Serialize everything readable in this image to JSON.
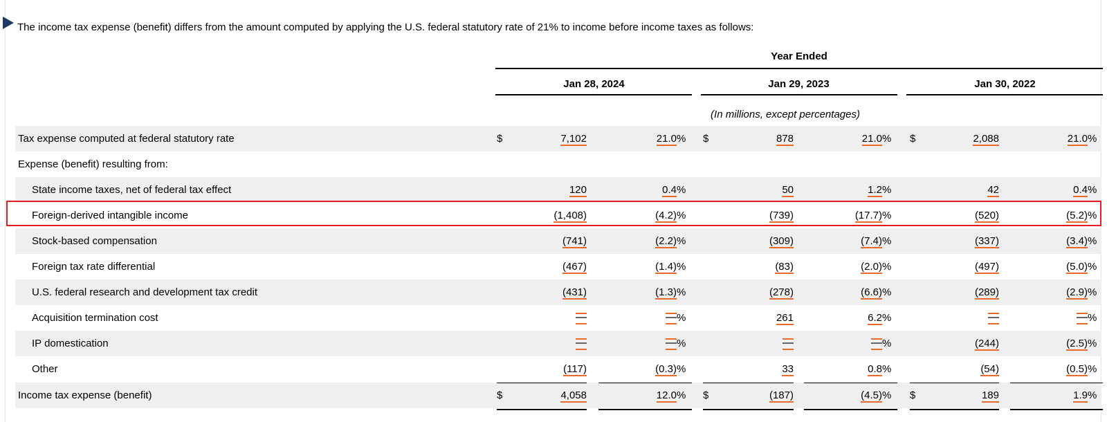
{
  "intro_text": "The income tax expense (benefit) differs from the amount computed by applying the U.S. federal statutory rate of 21% to income before income taxes as follows:",
  "year_ended_label": "Year Ended",
  "periods": [
    "Jan 28, 2024",
    "Jan 29, 2023",
    "Jan 30, 2022"
  ],
  "units_note": "(In millions, except percentages)",
  "currency_symbol": "$",
  "percent_symbol": "%",
  "rows": [
    {
      "label": "Tax expense computed at federal statutory rate",
      "indent": false,
      "dollar": true,
      "values": [
        "7,102",
        "21.0",
        "878",
        "21.0",
        "2,088",
        "21.0"
      ],
      "pct_suffix": [
        " %",
        " %",
        " %"
      ]
    },
    {
      "label": "Expense (benefit) resulting from:",
      "indent": false,
      "heading": true
    },
    {
      "label": "State income taxes, net of federal tax effect",
      "indent": true,
      "values": [
        "120",
        "0.4",
        "50",
        "1.2",
        "42",
        "0.4"
      ],
      "pct_suffix": [
        " %",
        " %",
        " %"
      ]
    },
    {
      "label": "Foreign-derived intangible income",
      "indent": true,
      "highlighted": true,
      "values": [
        "(1,408)",
        "(4.2)",
        "(739)",
        "(17.7)",
        "(520)",
        "(5.2)"
      ],
      "pct_suffix": [
        "%",
        "%",
        "%"
      ]
    },
    {
      "label": "Stock-based compensation",
      "indent": true,
      "values": [
        "(741)",
        "(2.2)",
        "(309)",
        "(7.4)",
        "(337)",
        "(3.4)"
      ],
      "pct_suffix": [
        "%",
        "%",
        "%"
      ]
    },
    {
      "label": "Foreign tax rate differential",
      "indent": true,
      "values": [
        "(467)",
        "(1.4)",
        "(83)",
        "(2.0)",
        "(497)",
        "(5.0)"
      ],
      "pct_suffix": [
        "%",
        "%",
        "%"
      ]
    },
    {
      "label": "U.S. federal research and development tax credit",
      "indent": true,
      "values": [
        "(431)",
        "(1.3)",
        "(278)",
        "(6.6)",
        "(289)",
        "(2.9)"
      ],
      "pct_suffix": [
        "%",
        "%",
        "%"
      ]
    },
    {
      "label": "Acquisition termination cost",
      "indent": true,
      "values": [
        "—",
        "—",
        "261",
        "6.2",
        "—",
        "—"
      ],
      "pct_suffix": [
        "%",
        " %",
        "%"
      ]
    },
    {
      "label": "IP domestication",
      "indent": true,
      "values": [
        "—",
        "—",
        "—",
        "—",
        "(244)",
        "(2.5)"
      ],
      "pct_suffix": [
        "%",
        "%",
        "%"
      ]
    },
    {
      "label": "Other",
      "indent": true,
      "values": [
        "(117)",
        "(0.3)",
        "33",
        "0.8",
        "(54)",
        "(0.5)"
      ],
      "pct_suffix": [
        "%",
        " %",
        "%"
      ]
    },
    {
      "label": "Income tax expense (benefit)",
      "indent": false,
      "dollar": true,
      "total": true,
      "values": [
        "4,058",
        "12.0",
        "(187)",
        "(4.5)",
        "189",
        "1.9"
      ],
      "pct_suffix": [
        " %",
        "%",
        " %"
      ]
    }
  ]
}
